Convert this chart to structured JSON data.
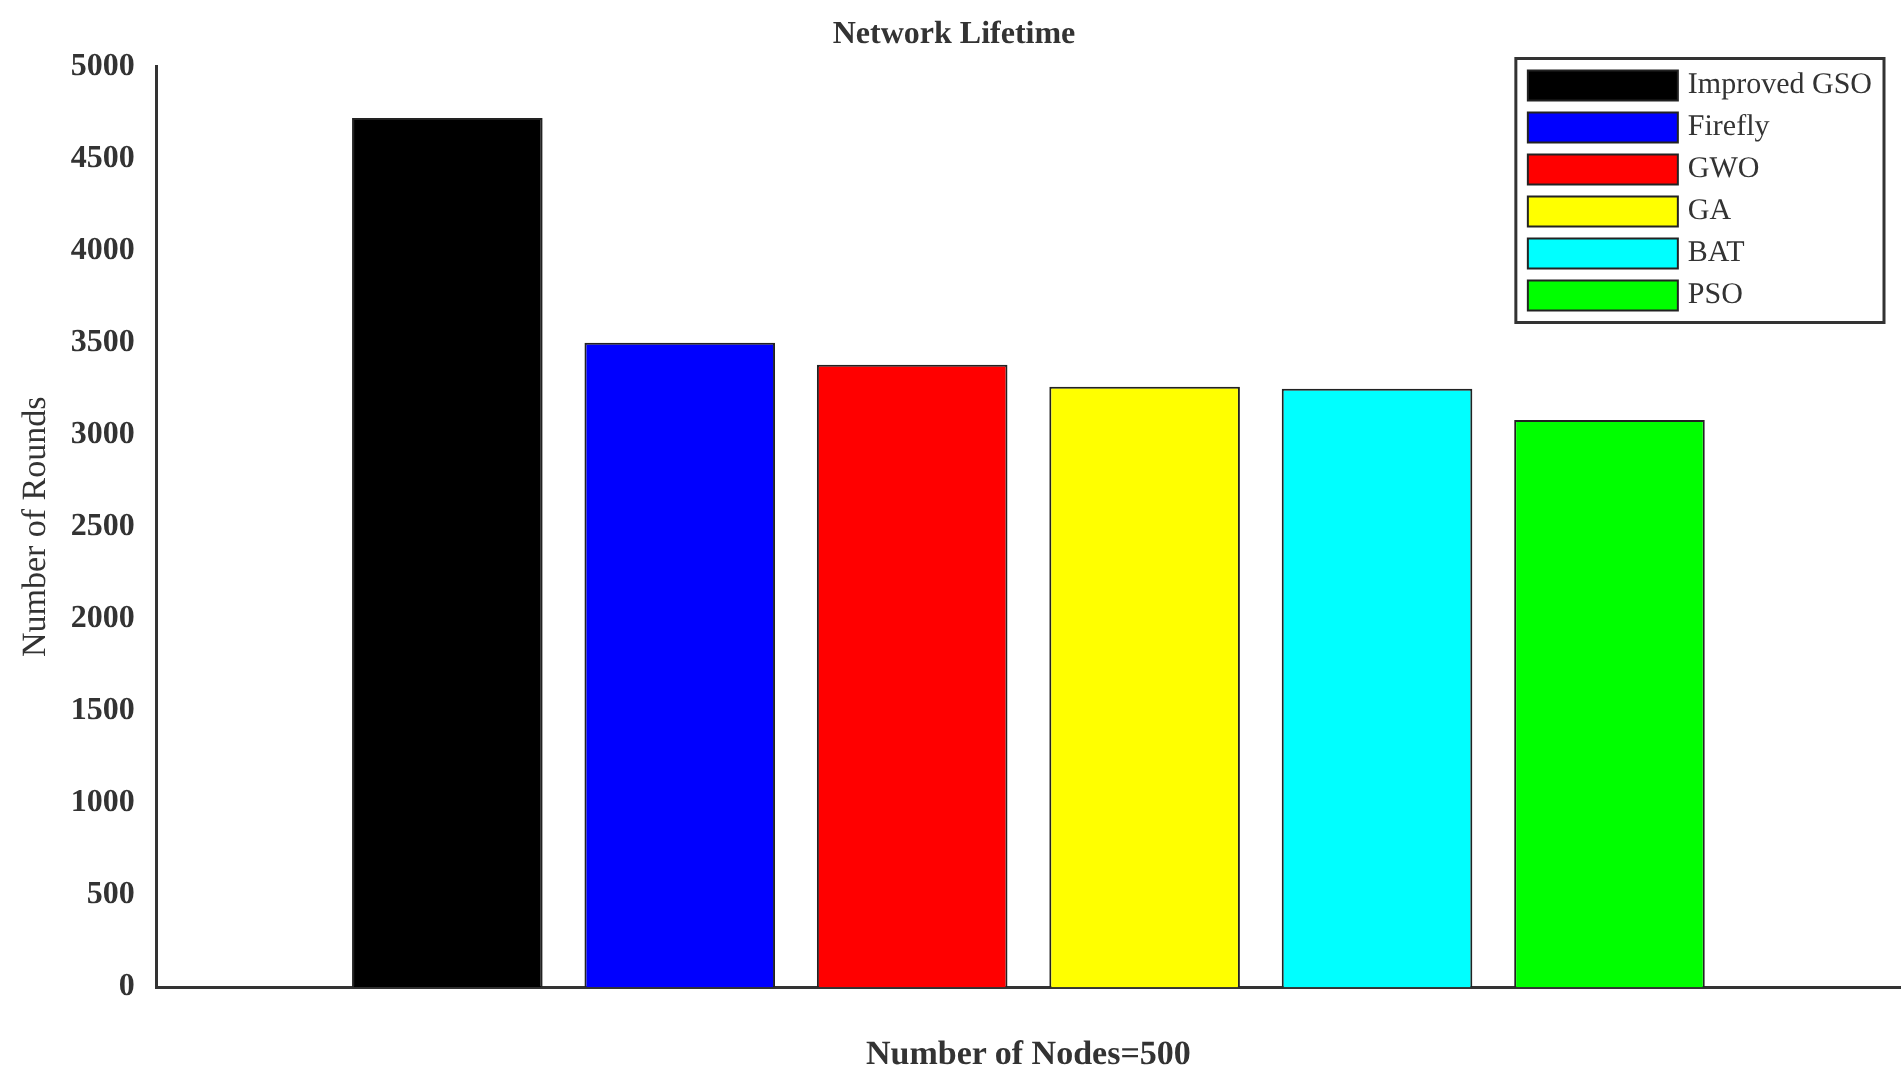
{
  "chart_data": {
    "type": "bar",
    "title": "Network Lifetime",
    "xlabel": "Number of Nodes=500",
    "ylabel": "Number of Rounds",
    "categories": [
      null
    ],
    "series": [
      {
        "name": "Improved GSO",
        "color": "#000000",
        "values": [
          4720
        ]
      },
      {
        "name": "Firefly",
        "color": "#0000ff",
        "values": [
          3500
        ]
      },
      {
        "name": "GWO",
        "color": "#ff0000",
        "values": [
          3380
        ]
      },
      {
        "name": "GA",
        "color": "#ffff00",
        "values": [
          3260
        ]
      },
      {
        "name": "BAT",
        "color": "#00ffff",
        "values": [
          3250
        ]
      },
      {
        "name": "PSO",
        "color": "#00ff00",
        "values": [
          3080
        ]
      }
    ],
    "ylim": [
      0,
      5000
    ],
    "yticks": [
      0,
      500,
      1000,
      1500,
      2000,
      2500,
      3000,
      3500,
      4000,
      4500,
      5000
    ],
    "grid": false,
    "legend": "top right"
  }
}
